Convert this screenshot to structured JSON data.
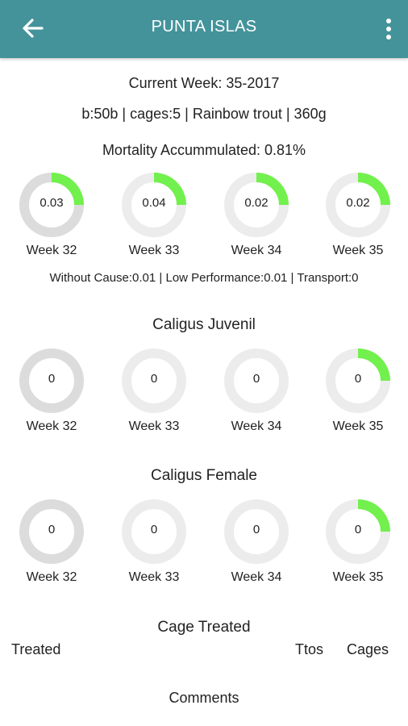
{
  "header": {
    "title": "PUNTA ISLAS",
    "back_icon": "arrow-left-icon",
    "menu_icon": "more-vertical-icon",
    "color": "#44939b"
  },
  "summary": {
    "current_week": "Current Week: 35-2017",
    "details": "b:50b | cages:5 | Rainbow trout | 360g",
    "mortality": "Mortality Accummulated: 0.81%"
  },
  "colors": {
    "progress": "#72f04d",
    "track_light": "#ececec",
    "track_dark": "#dcdcdc"
  },
  "mortality_weeks": [
    {
      "week": "Week 32",
      "value": "0.03",
      "progress": 0.25,
      "dark": true
    },
    {
      "week": "Week 33",
      "value": "0.04",
      "progress": 0.25,
      "dark": false
    },
    {
      "week": "Week 34",
      "value": "0.02",
      "progress": 0.25,
      "dark": false
    },
    {
      "week": "Week 35",
      "value": "0.02",
      "progress": 0.25,
      "dark": false
    }
  ],
  "mortality_breakdown": "Without Cause:0.01 | Low Performance:0.01 | Transport:0",
  "caligus_juvenil": {
    "title": "Caligus Juvenil",
    "weeks": [
      {
        "week": "Week 32",
        "value": "0",
        "progress": 0,
        "dark": true
      },
      {
        "week": "Week 33",
        "value": "0",
        "progress": 0,
        "dark": false
      },
      {
        "week": "Week 34",
        "value": "0",
        "progress": 0,
        "dark": false
      },
      {
        "week": "Week 35",
        "value": "0",
        "progress": 0.25,
        "dark": false
      }
    ]
  },
  "caligus_female": {
    "title": "Caligus Female",
    "weeks": [
      {
        "week": "Week 32",
        "value": "0",
        "progress": 0,
        "dark": true
      },
      {
        "week": "Week 33",
        "value": "0",
        "progress": 0,
        "dark": false
      },
      {
        "week": "Week 34",
        "value": "0",
        "progress": 0,
        "dark": false
      },
      {
        "week": "Week 35",
        "value": "0",
        "progress": 0.25,
        "dark": false
      }
    ]
  },
  "cage_treated": {
    "title": "Cage Treated",
    "col_treated": "Treated",
    "col_ttos": "Ttos",
    "col_cages": "Cages"
  },
  "comments": {
    "title": "Comments"
  }
}
